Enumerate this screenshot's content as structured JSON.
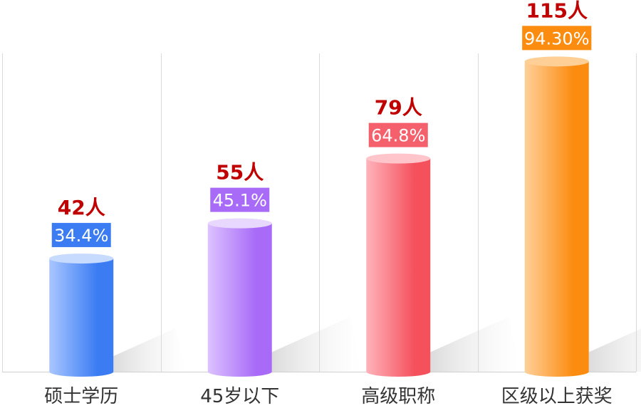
{
  "chart_data": {
    "type": "bar",
    "categories": [
      "硕士学历",
      "45岁以下",
      "高级职称",
      "区级以上获奖"
    ],
    "counts": [
      "42人",
      "55人",
      "79人",
      "115人"
    ],
    "percent_labels": [
      "34.4%",
      "45.1%",
      "64.8%",
      "94.30%"
    ],
    "values": [
      34.4,
      45.1,
      64.8,
      94.3
    ],
    "unit": "%",
    "ylim": [
      0,
      100
    ],
    "grid": "vertical separators",
    "colors": [
      {
        "light": "#a9c6ff",
        "main": "#3b7cf3",
        "top": "#c7daff",
        "badge": "#3b7cf3"
      },
      {
        "light": "#dcc2ff",
        "main": "#a86bf7",
        "top": "#e8d7ff",
        "badge": "#a86bf7"
      },
      {
        "light": "#ffb3bb",
        "main": "#f4515d",
        "top": "#ffc5cb",
        "badge": "#f4606b"
      },
      {
        "light": "#ffd09a",
        "main": "#fb8c10",
        "top": "#ffcf96",
        "badge": "#fb8c10"
      }
    ]
  }
}
